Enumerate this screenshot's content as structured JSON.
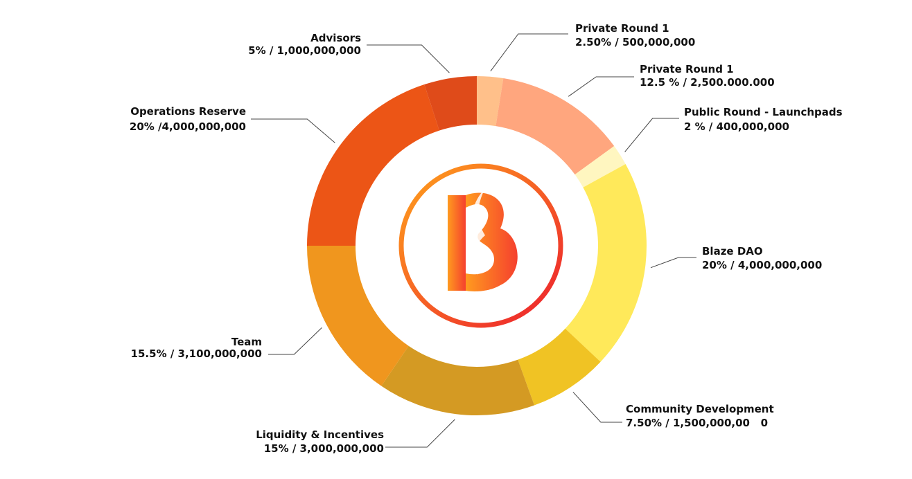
{
  "chart_data": {
    "type": "pie",
    "title": "",
    "slices": [
      {
        "name": "Private Round 1",
        "label_value": "2.50% / 500,000,000",
        "value": 2.5,
        "color": "#FFC08A"
      },
      {
        "name": "Private Round 1",
        "label_value": "12.5 % / 2,500.000.000",
        "value": 12.5,
        "color": "#FFA67E"
      },
      {
        "name": "Public Round - Launchpads",
        "label_value": "2 % / 400,000,000",
        "value": 2,
        "color": "#FFF6C0"
      },
      {
        "name": "Blaze DAO",
        "label_value": "20% / 4,000,000,000",
        "value": 20,
        "color": "#FFE95A"
      },
      {
        "name": "Community Development",
        "label_value": "7.50% / 1,500,000,00   0",
        "value": 7.5,
        "color": "#F0C324"
      },
      {
        "name": "Liquidity & Incentives",
        "label_value": "15% / 3,000,000,000",
        "value": 15,
        "color": "#D49A23"
      },
      {
        "name": "Team",
        "label_value": "15.5% / 3,100,000,000",
        "value": 15.5,
        "color": "#F0961E"
      },
      {
        "name": "Operations Reserve",
        "label_value": "20% /4,000,000,000",
        "value": 20,
        "color": "#EC5516"
      },
      {
        "name": "Advisors",
        "label_value": "5% / 1,000,000,000",
        "value": 5,
        "color": "#DF4B1A"
      }
    ]
  }
}
